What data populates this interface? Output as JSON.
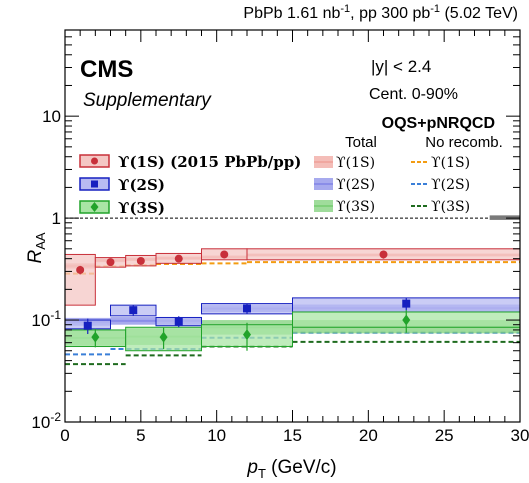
{
  "chart_data": {
    "type": "scatter",
    "header": {
      "prefix": "PbPb 1.61 nb",
      "prefix_sup": "-1",
      "middle": ", pp 300 pb",
      "middle_sup": "-1",
      "suffix": " (5.02 TeV)"
    },
    "experiment": "CMS",
    "label": "Supplementary",
    "selection": [
      "|y| < 2.4",
      "Cent. 0-90%"
    ],
    "model_title": "OQS+pNRQCD",
    "model_columns": [
      "Total",
      "No recomb."
    ],
    "xlabel": {
      "main": "p",
      "sub": "T",
      "rest": " (GeV/c)"
    },
    "ylabel": {
      "main": "R",
      "sub": "AA"
    },
    "x_range": [
      0,
      30
    ],
    "y_range": [
      0.01,
      70
    ],
    "y_scale": "log",
    "x_ticks": [
      0,
      5,
      10,
      15,
      20,
      25,
      30
    ],
    "x_tick_labels": [
      "0",
      "5",
      "10",
      "15",
      "20",
      "25",
      "30"
    ],
    "y_ticks": [
      0.01,
      0.1,
      1,
      10
    ],
    "y_tick_labels": [
      {
        "base": "10",
        "sup": "-2"
      },
      {
        "base": "10",
        "sup": "-1"
      },
      {
        "base": "1",
        "sup": ""
      },
      {
        "base": "10",
        "sup": ""
      }
    ],
    "reference_line": 1,
    "global_uncertainty": {
      "x": [
        28,
        30
      ],
      "low": 0.96,
      "high": 1.04
    },
    "legend": [
      "ϒ(1S) (2015 PbPb/pp)",
      "ϒ(2S)",
      "ϒ(3S)"
    ],
    "model_legend": [
      "ϒ(1S)",
      "ϒ(2S)",
      "ϒ(3S)"
    ],
    "colors": {
      "1S": "#c8303a",
      "1S_fill": "#f4c7c4",
      "1S_model": "#f0a7a0",
      "1S_norecomb": "#f39c12",
      "2S": "#1620c0",
      "2S_fill": "#b8bbf2",
      "2S_model": "#8a8de8",
      "2S_norecomb": "#3a7fd8",
      "3S": "#21a32a",
      "3S_fill": "#a9e5a5",
      "3S_model": "#7fd07a",
      "3S_norecomb": "#1e6b1e"
    },
    "series": [
      {
        "name": "ϒ(1S) (2015 PbPb/pp)",
        "key": "1S",
        "marker": "circle",
        "points": [
          {
            "x": 1,
            "y": 0.31,
            "stat": 0.03,
            "bin": [
              0,
              2
            ],
            "sys": [
              0.14,
              0.44
            ]
          },
          {
            "x": 3,
            "y": 0.37,
            "stat": 0.025,
            "bin": [
              2,
              4
            ],
            "sys": [
              0.33,
              0.41
            ]
          },
          {
            "x": 5,
            "y": 0.38,
            "stat": 0.025,
            "bin": [
              4,
              6
            ],
            "sys": [
              0.34,
              0.43
            ]
          },
          {
            "x": 7.5,
            "y": 0.4,
            "stat": 0.03,
            "bin": [
              6,
              9
            ],
            "sys": [
              0.36,
              0.45
            ]
          },
          {
            "x": 10.5,
            "y": 0.44,
            "stat": 0.035,
            "bin": [
              9,
              12
            ],
            "sys": [
              0.39,
              0.5
            ]
          },
          {
            "x": 21,
            "y": 0.44,
            "stat": 0.04,
            "bin": [
              12,
              30
            ],
            "sys": [
              0.39,
              0.5
            ]
          }
        ],
        "model_total": [
          {
            "x": [
              0,
              2
            ],
            "low": 0.32,
            "high": 0.36
          },
          {
            "x": [
              2,
              4
            ],
            "low": 0.37,
            "high": 0.4
          },
          {
            "x": [
              4,
              6
            ],
            "low": 0.38,
            "high": 0.41
          },
          {
            "x": [
              6,
              9
            ],
            "low": 0.39,
            "high": 0.42
          },
          {
            "x": [
              9,
              12
            ],
            "low": 0.4,
            "high": 0.43
          },
          {
            "x": [
              12,
              30
            ],
            "low": 0.42,
            "high": 0.45
          }
        ],
        "model_norecomb": [
          {
            "x": [
              0,
              2
            ],
            "y": 0.285
          },
          {
            "x": [
              2,
              4
            ],
            "y": 0.335
          },
          {
            "x": [
              4,
              6
            ],
            "y": 0.345
          },
          {
            "x": [
              6,
              9
            ],
            "y": 0.355
          },
          {
            "x": [
              9,
              12
            ],
            "y": 0.36
          },
          {
            "x": [
              12,
              30
            ],
            "y": 0.37
          }
        ]
      },
      {
        "name": "ϒ(2S)",
        "key": "2S",
        "marker": "square",
        "points": [
          {
            "x": 1.5,
            "y": 0.088,
            "stat": 0.015,
            "bin": [
              0,
              3
            ],
            "sys": [
              0.082,
              0.1
            ]
          },
          {
            "x": 4.5,
            "y": 0.125,
            "stat": 0.014,
            "bin": [
              3,
              6
            ],
            "sys": [
              0.11,
              0.14
            ]
          },
          {
            "x": 7.5,
            "y": 0.097,
            "stat": 0.012,
            "bin": [
              6,
              9
            ],
            "sys": [
              0.088,
              0.106
            ]
          },
          {
            "x": 12,
            "y": 0.13,
            "stat": 0.015,
            "bin": [
              9,
              15
            ],
            "sys": [
              0.115,
              0.145
            ]
          },
          {
            "x": 22.5,
            "y": 0.145,
            "stat": 0.02,
            "bin": [
              15,
              30
            ],
            "sys": [
              0.12,
              0.165
            ]
          }
        ],
        "model_total": [
          {
            "x": [
              0,
              3
            ],
            "low": 0.088,
            "high": 0.105
          },
          {
            "x": [
              3,
              9
            ],
            "low": 0.09,
            "high": 0.107
          },
          {
            "x": [
              9,
              15
            ],
            "low": 0.12,
            "high": 0.14
          },
          {
            "x": [
              15,
              30
            ],
            "low": 0.121,
            "high": 0.142
          }
        ],
        "model_norecomb": [
          {
            "x": [
              0,
              3
            ],
            "y": 0.046
          },
          {
            "x": [
              3,
              9
            ],
            "y": 0.052
          },
          {
            "x": [
              9,
              15
            ],
            "y": 0.067
          },
          {
            "x": [
              15,
              30
            ],
            "y": 0.075
          }
        ]
      },
      {
        "name": "ϒ(3S)",
        "key": "3S",
        "marker": "diamond",
        "points": [
          {
            "x": 2,
            "y": 0.068,
            "stat": 0.014,
            "bin": [
              0,
              4
            ],
            "sys": [
              0.055,
              0.08
            ]
          },
          {
            "x": 6.5,
            "y": 0.068,
            "stat": 0.016,
            "bin": [
              4,
              9
            ],
            "sys": [
              0.05,
              0.085
            ]
          },
          {
            "x": 12,
            "y": 0.072,
            "stat": 0.022,
            "bin": [
              9,
              15
            ],
            "sys": [
              0.055,
              0.09
            ]
          },
          {
            "x": 22.5,
            "y": 0.1,
            "stat": 0.025,
            "bin": [
              15,
              30
            ],
            "sys": [
              0.085,
              0.12
            ]
          }
        ],
        "model_total": [
          {
            "x": [
              0,
              4
            ],
            "low": 0.056,
            "high": 0.08
          },
          {
            "x": [
              4,
              9
            ],
            "low": 0.057,
            "high": 0.083
          },
          {
            "x": [
              9,
              15
            ],
            "low": 0.072,
            "high": 0.1
          },
          {
            "x": [
              15,
              30
            ],
            "low": 0.074,
            "high": 0.1
          }
        ],
        "model_norecomb": [
          {
            "x": [
              0,
              4
            ],
            "y": 0.037
          },
          {
            "x": [
              4,
              9
            ],
            "y": 0.045
          },
          {
            "x": [
              9,
              15
            ],
            "y": 0.055
          },
          {
            "x": [
              15,
              30
            ],
            "y": 0.061
          }
        ]
      }
    ]
  }
}
